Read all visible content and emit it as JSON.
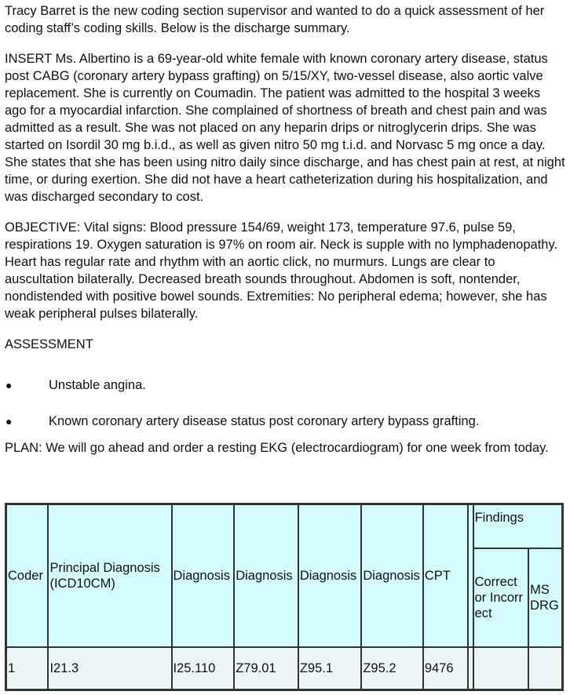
{
  "intro": "Tracy Barret is the new coding section supervisor and wanted to do a quick assessment of her coding staff’s coding skills. Below is the discharge summary.",
  "insert": "INSERT Ms. Albertino is a 69-year-old white female with known coronary artery disease, status post CABG (coronary artery bypass grafting) on 5/15/XY, two-vessel disease, also aortic valve replacement. She is currently on Coumadin. The patient was admitted to the hospital 3 weeks ago for a myocardial infarction. She complained of shortness of breath and chest pain and was admitted as a result. She was not placed on any heparin drips or nitroglycerin drips. She was started on Isordil 30 mg b.i.d., as well as given nitro 50 mg t.i.d. and Norvasc 5 mg once a day. She states that she has been using nitro daily since discharge, and has chest pain at rest, at night time, or during exertion. She did not have a heart catheterization during his hospitalization, and was discharged secondary to cost.",
  "objective": "OBJECTIVE: Vital signs: Blood pressure 154/69, weight 173, temperature 97.6, pulse 59, respirations 19. Oxygen saturation is 97% on room air. Neck is supple with no lymphadenopathy. Heart has regular rate and rhythm with an aortic click, no murmurs. Lungs are clear to auscultation bilaterally. Decreased breath sounds throughout. Abdomen is soft, nontender, nondistended with positive bowel sounds. Extremities: No peripheral edema; however, she has weak peripheral pulses bilaterally.",
  "assessment_heading": "ASSESSMENT",
  "bullet_glyph": "●",
  "assessment_items": [
    "Unstable angina.",
    "Known coronary artery disease status post coronary artery bypass grafting."
  ],
  "plan": "PLAN: We will go ahead and order a resting EKG (electrocardiogram) for one week from today.",
  "table": {
    "headers": {
      "coder": "Coder",
      "principal": "Principal Diagnosis (ICD10CM)",
      "dx1": "Diagnosis",
      "dx2": "Diagnosis",
      "dx3": "Diagnosis",
      "dx4": "Diagnosis",
      "cpt": "CPT",
      "findings": "Findings",
      "correct": "Correct or Incorrect",
      "msdrg": "MS DRG"
    },
    "row": {
      "coder": "1",
      "principal": "I21.3",
      "dx1": "I25.110",
      "dx2": "Z79.01",
      "dx3": "Z95.1",
      "dx4": "Z95.2",
      "cpt": "9476",
      "blank": "",
      "correct": "",
      "msdrg": ""
    }
  }
}
